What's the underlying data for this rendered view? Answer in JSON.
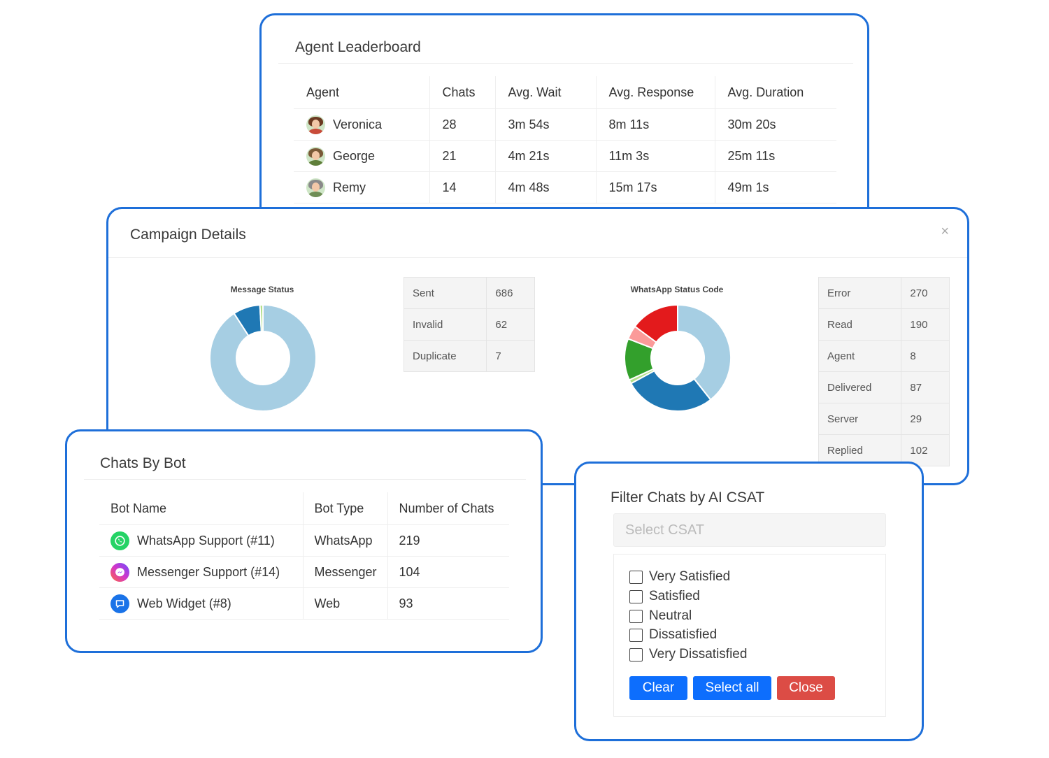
{
  "leaderboard": {
    "title": "Agent Leaderboard",
    "columns": [
      "Agent",
      "Chats",
      "Avg. Wait",
      "Avg. Response",
      "Avg. Duration"
    ],
    "rows": [
      {
        "agent": "Veronica",
        "chats": "28",
        "wait": "3m 54s",
        "response": "8m 11s",
        "duration": "30m 20s",
        "avatar_hair": "#6b3a22",
        "avatar_bg": "#cfe6c7",
        "avatar_shirt": "#c94b3a"
      },
      {
        "agent": "George",
        "chats": "21",
        "wait": "4m 21s",
        "response": "11m 3s",
        "duration": "25m 11s",
        "avatar_hair": "#7a5a38",
        "avatar_bg": "#cfe6c7",
        "avatar_shirt": "#5f7f3a"
      },
      {
        "agent": "Remy",
        "chats": "14",
        "wait": "4m 48s",
        "response": "15m 17s",
        "duration": "49m 1s",
        "avatar_hair": "#8a8a8a",
        "avatar_bg": "#cfe6c7",
        "avatar_shirt": "#6f8d55"
      }
    ]
  },
  "campaign": {
    "title": "Campaign Details",
    "close_icon": "×",
    "message_status": {
      "chart_title": "Message Status",
      "rows": [
        {
          "label": "Sent",
          "value": "686"
        },
        {
          "label": "Invalid",
          "value": "62"
        },
        {
          "label": "Duplicate",
          "value": "7"
        }
      ]
    },
    "whatsapp_status": {
      "chart_title": "WhatsApp Status Code",
      "rows": [
        {
          "label": "Error",
          "value": "270"
        },
        {
          "label": "Read",
          "value": "190"
        },
        {
          "label": "Agent",
          "value": "8"
        },
        {
          "label": "Delivered",
          "value": "87"
        },
        {
          "label": "Server",
          "value": "29"
        },
        {
          "label": "Replied",
          "value": "102"
        }
      ]
    }
  },
  "chart_data": [
    {
      "type": "pie",
      "title": "Message Status",
      "categories": [
        "Sent",
        "Invalid",
        "Duplicate"
      ],
      "values": [
        686,
        62,
        7
      ],
      "colors": [
        "#a6cee3",
        "#1f78b4",
        "#b2df8a"
      ]
    },
    {
      "type": "pie",
      "title": "WhatsApp Status Code",
      "categories": [
        "Error",
        "Read",
        "Agent",
        "Delivered",
        "Server",
        "Replied"
      ],
      "values": [
        270,
        190,
        8,
        87,
        29,
        102
      ],
      "colors": [
        "#a6cee3",
        "#1f78b4",
        "#b2df8a",
        "#33a02c",
        "#fb9a99",
        "#e31a1c"
      ]
    }
  ],
  "chats_by_bot": {
    "title": "Chats By Bot",
    "columns": [
      "Bot Name",
      "Bot Type",
      "Number of Chats"
    ],
    "rows": [
      {
        "name": "WhatsApp Support (#11)",
        "type": "WhatsApp",
        "chats": "219",
        "icon": "whatsapp-icon",
        "icon_color": "#25d366"
      },
      {
        "name": "Messenger Support (#14)",
        "type": "Messenger",
        "chats": "104",
        "icon": "messenger-icon",
        "icon_color": "#a33bff"
      },
      {
        "name": "Web Widget (#8)",
        "type": "Web",
        "chats": "93",
        "icon": "chat-bubble-icon",
        "icon_color": "#1a73e8"
      }
    ]
  },
  "filter": {
    "title": "Filter Chats by AI CSAT",
    "select_placeholder": "Select CSAT",
    "options": [
      "Very Satisfied",
      "Satisfied",
      "Neutral",
      "Dissatisfied",
      "Very Dissatisfied"
    ],
    "buttons": {
      "clear": "Clear",
      "select_all": "Select all",
      "close": "Close"
    }
  }
}
